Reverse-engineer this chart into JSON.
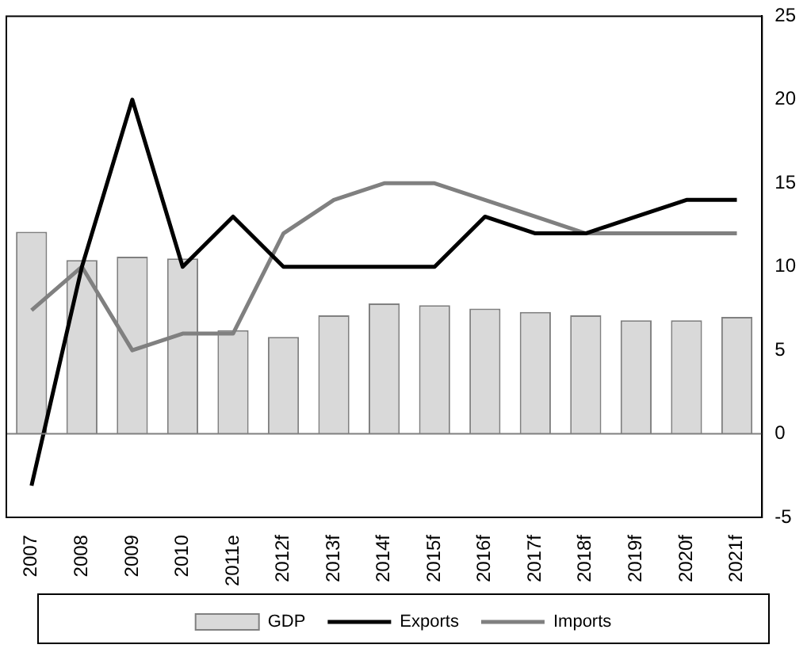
{
  "chart_data": {
    "type": "bar",
    "categories": [
      "2007",
      "2008",
      "2009",
      "2010",
      "2011e",
      "2012f",
      "2013f",
      "2014f",
      "2015f",
      "2016f",
      "2017f",
      "2018f",
      "2019f",
      "2020f",
      "2021f"
    ],
    "series": [
      {
        "name": "GDP",
        "color": "#d9d9d9",
        "values": [
          12.1,
          10.4,
          10.6,
          10.5,
          6.2,
          5.8,
          7.1,
          7.8,
          7.7,
          7.5,
          7.3,
          7.1,
          6.8,
          6.8,
          7.0
        ]
      },
      {
        "name": "Exports",
        "type": "line",
        "color": "#000000",
        "values": [
          -3.1,
          10,
          20,
          10,
          13,
          10,
          10,
          10,
          10,
          13,
          12,
          12,
          13,
          14,
          14
        ]
      },
      {
        "name": "Imports",
        "type": "line",
        "color": "#808080",
        "values": [
          7.4,
          10,
          5,
          6,
          6,
          12,
          14,
          15,
          15,
          14,
          13,
          12,
          12,
          12,
          12
        ]
      }
    ],
    "ylim": [
      -5,
      25
    ],
    "yticks": [
      -5,
      0,
      5,
      10,
      15,
      20,
      25
    ],
    "ref_lines": [
      {
        "axis": "y",
        "value": 0,
        "color": "#808080"
      }
    ],
    "legend": "bottom",
    "grid": false,
    "marker": "none"
  }
}
